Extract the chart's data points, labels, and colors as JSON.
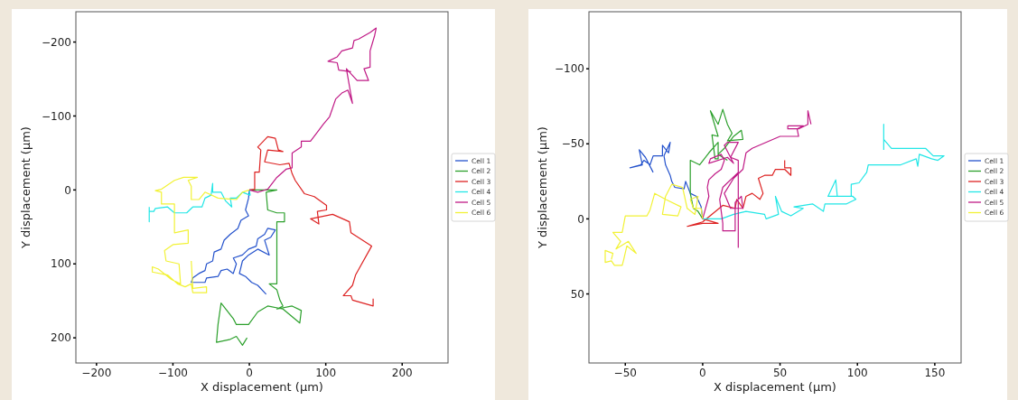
{
  "chart_data": [
    {
      "type": "line",
      "xlabel": "X displacement (µm)",
      "ylabel": "Y displacement (µm)",
      "xlim": [
        -227,
        260
      ],
      "ylim": [
        234,
        -241
      ],
      "xticks": [
        {
          "value": -200,
          "label": "−200"
        },
        {
          "value": -100,
          "label": "−100"
        },
        0,
        100,
        200
      ],
      "yticks": [
        {
          "value": -200,
          "label": "−200"
        },
        {
          "value": -100,
          "label": "−100"
        },
        0,
        100,
        200
      ],
      "legend": "right",
      "series": [
        {
          "name": "Cell 1",
          "color": "#2452cc",
          "x": [
            0,
            -1,
            -5,
            -1,
            -11,
            -15,
            -25,
            -33,
            -37,
            -46,
            -48,
            -56,
            -58,
            -66,
            -74,
            -76,
            -58,
            -56,
            -41,
            -37,
            -29,
            -21,
            -17,
            -21,
            -9,
            -1,
            9,
            11,
            20,
            24,
            34,
            28,
            20,
            26,
            11,
            -1,
            -9,
            -13,
            -5,
            3,
            11,
            22
          ],
          "values": [
            0,
            11,
            27,
            35,
            41,
            52,
            60,
            68,
            80,
            84,
            96,
            100,
            109,
            113,
            119,
            125,
            125,
            119,
            117,
            109,
            107,
            113,
            100,
            92,
            88,
            80,
            76,
            66,
            60,
            52,
            54,
            64,
            68,
            88,
            80,
            88,
            96,
            113,
            117,
            125,
            129,
            141
          ]
        },
        {
          "name": "Cell 2",
          "color": "#2ca02c",
          "x": [
            0,
            36,
            22,
            24,
            36,
            46,
            46,
            36,
            36,
            26,
            36,
            40,
            44,
            36,
            56,
            68,
            66,
            44,
            24,
            11,
            -1,
            -17,
            -21,
            -37,
            -41,
            -43,
            -25,
            -17,
            -9,
            -3
          ],
          "values": [
            0,
            0,
            3,
            27,
            31,
            31,
            43,
            43,
            127,
            127,
            135,
            149,
            157,
            161,
            157,
            163,
            180,
            161,
            157,
            165,
            182,
            182,
            174,
            153,
            182,
            206,
            202,
            198,
            210,
            200
          ]
        },
        {
          "name": "Cell 3",
          "color": "#dd2222",
          "x": [
            0,
            7,
            7,
            13,
            15,
            11,
            24,
            34,
            38,
            44,
            24,
            20,
            40,
            52,
            56,
            60,
            72,
            85,
            101,
            101,
            89,
            91,
            80,
            109,
            131,
            133,
            160,
            139,
            135,
            123,
            133,
            135,
            162,
            162
          ],
          "values": [
            0,
            -1,
            -24,
            -24,
            -54,
            -58,
            -72,
            -70,
            -54,
            -52,
            -54,
            -38,
            -34,
            -36,
            -22,
            -13,
            5,
            9,
            21,
            27,
            29,
            46,
            39,
            33,
            43,
            58,
            76,
            115,
            129,
            143,
            143,
            149,
            157,
            147
          ]
        },
        {
          "name": "Cell 4",
          "color": "#22e6e6",
          "x": [
            0,
            1,
            -9,
            -17,
            -25,
            -23,
            -31,
            -37,
            -48,
            -48,
            -50,
            -58,
            -62,
            -74,
            -82,
            -98,
            -107,
            -123,
            -125,
            -131,
            -131,
            -131
          ],
          "values": [
            0,
            7,
            3,
            11,
            11,
            23,
            15,
            3,
            3,
            -9,
            7,
            11,
            23,
            23,
            31,
            31,
            23,
            25,
            29,
            29,
            43,
            23
          ]
        },
        {
          "name": "Cell 5",
          "color": "#c01a86",
          "x": [
            0,
            11,
            24,
            36,
            48,
            56,
            56,
            68,
            68,
            80,
            89,
            97,
            105,
            109,
            113,
            121,
            129,
            135,
            129,
            127,
            141,
            156,
            150,
            158,
            158,
            164,
            166,
            158,
            143,
            137,
            135,
            121,
            115,
            103,
            115,
            117,
            133
          ],
          "values": [
            0,
            3,
            -1,
            -17,
            -28,
            -30,
            -50,
            -58,
            -66,
            -66,
            -78,
            -89,
            -99,
            -111,
            -123,
            -131,
            -135,
            -117,
            -152,
            -164,
            -148,
            -148,
            -164,
            -166,
            -188,
            -209,
            -219,
            -213,
            -204,
            -202,
            -192,
            -188,
            -180,
            -174,
            -172,
            -162,
            -160
          ]
        },
        {
          "name": "Cell 6",
          "color": "#f2f236",
          "x": [
            0,
            -9,
            -17,
            -41,
            -58,
            -66,
            -76,
            -76,
            -80,
            -68,
            -86,
            -98,
            -115,
            -123,
            -115,
            -115,
            -98,
            -98,
            -80,
            -80,
            -100,
            -111,
            -109,
            -92,
            -90,
            -102,
            -119,
            -127,
            -127,
            -107,
            -94,
            -84,
            -76,
            -74,
            -56,
            -56,
            -74,
            -76
          ],
          "values": [
            0,
            3,
            13,
            11,
            3,
            13,
            13,
            -5,
            -13,
            -17,
            -17,
            -13,
            -1,
            1,
            3,
            19,
            19,
            58,
            54,
            72,
            74,
            82,
            96,
            100,
            127,
            121,
            107,
            104,
            111,
            115,
            127,
            131,
            127,
            139,
            139,
            131,
            133,
            96
          ]
        }
      ]
    },
    {
      "type": "line",
      "xlabel": "X displacement (µm)",
      "ylabel": "Y displacement (µm)",
      "xlim": [
        -73.5,
        167
      ],
      "ylim": [
        96,
        -138
      ],
      "xticks": [
        {
          "value": -50,
          "label": "−50"
        },
        0,
        50,
        100,
        150
      ],
      "yticks": [
        {
          "value": -100,
          "label": "−100"
        },
        {
          "value": -50,
          "label": "−50"
        },
        0,
        50
      ],
      "legend": "right",
      "series": [
        {
          "name": "Cell 1",
          "color": "#2452cc",
          "x": [
            0,
            -1,
            -4,
            -8,
            -11,
            -12,
            -18,
            -20,
            -21,
            -24,
            -25,
            -21,
            -22,
            -26,
            -26,
            -32,
            -34,
            -38,
            -40,
            -47,
            -39,
            -41,
            -37,
            -32
          ],
          "values": [
            0,
            -8,
            -15,
            -17,
            -25,
            -20,
            -21,
            -25,
            -29,
            -36,
            -42,
            -51,
            -44,
            -49,
            -42,
            -42,
            -36,
            -39,
            -36,
            -34,
            -36,
            -46,
            -41,
            -31
          ]
        },
        {
          "name": "Cell 2",
          "color": "#2ca02c",
          "x": [
            0,
            -3,
            -6,
            -8,
            -8,
            -2,
            4,
            10,
            10,
            8,
            6,
            10,
            5,
            10,
            13,
            16,
            19,
            16,
            26,
            25,
            20,
            14,
            10,
            16
          ],
          "values": [
            0,
            -5,
            -7,
            -17,
            -39,
            -36,
            -44,
            -51,
            -40,
            -40,
            -56,
            -55,
            -72,
            -63,
            -73,
            -63,
            -57,
            -52,
            -53,
            -59,
            -55,
            -47,
            -43,
            -39
          ]
        },
        {
          "name": "Cell 3",
          "color": "#dd2222",
          "x": [
            0,
            10,
            0,
            -10,
            0,
            13,
            21,
            22,
            26,
            28,
            32,
            37,
            39,
            36,
            40,
            45,
            47,
            53,
            57,
            57,
            53,
            53
          ],
          "values": [
            0,
            3,
            3,
            5,
            2,
            -9,
            -7,
            -13,
            -7,
            -15,
            -17,
            -13,
            -17,
            -27,
            -29,
            -29,
            -33,
            -33,
            -29,
            -34,
            -34,
            -39
          ]
        },
        {
          "name": "Cell 4",
          "color": "#22e6e6",
          "x": [
            0,
            12,
            20,
            28,
            40,
            41,
            49,
            47,
            51,
            57,
            65,
            59,
            71,
            78,
            79,
            93,
            99,
            97,
            81,
            86,
            87,
            96,
            96,
            101,
            106,
            107,
            128,
            138,
            139,
            140,
            148,
            152,
            156,
            149,
            144,
            122,
            117,
            117,
            117
          ],
          "values": [
            0,
            0,
            -3,
            -5,
            -3,
            0,
            -3,
            -15,
            -5,
            -2,
            -7,
            -8,
            -10,
            -5,
            -10,
            -10,
            -13,
            -15,
            -15,
            -26,
            -15,
            -15,
            -23,
            -24,
            -31,
            -36,
            -36,
            -40,
            -35,
            -43,
            -40,
            -39,
            -42,
            -42,
            -47,
            -47,
            -53,
            -63,
            -46
          ]
        },
        {
          "name": "Cell 5",
          "color": "#c01a86",
          "x": [
            0,
            4,
            3,
            4,
            8,
            12,
            14,
            12,
            5,
            4,
            16,
            20,
            14,
            16,
            23,
            18,
            23,
            23,
            23,
            13,
            11,
            13,
            13,
            21,
            21,
            25,
            26,
            18,
            14,
            20,
            26,
            28,
            32,
            50,
            62,
            61,
            65,
            55,
            55,
            62,
            68,
            68,
            70
          ],
          "values": [
            0,
            -15,
            -21,
            -26,
            -30,
            -33,
            -39,
            -43,
            -40,
            -37,
            -41,
            -37,
            -49,
            -51,
            -51,
            -41,
            -39,
            19,
            -31,
            -21,
            -13,
            3,
            8,
            8,
            -11,
            -15,
            -7,
            -7,
            -17,
            -27,
            -33,
            -44,
            -47,
            -55,
            -55,
            -60,
            -62,
            -62,
            -60,
            -60,
            -63,
            -72,
            -63
          ]
        },
        {
          "name": "Cell 6",
          "color": "#f2f236",
          "x": [
            0,
            -1,
            -6,
            -8,
            -3,
            -5,
            -10,
            -13,
            -20,
            -24,
            -26,
            -16,
            -14,
            -24,
            -31,
            -34,
            -36,
            -50,
            -52,
            -58,
            -53,
            -56,
            -48,
            -43,
            -49,
            -51,
            -52,
            -57,
            -59,
            -63,
            -63,
            -58,
            -59
          ],
          "values": [
            0,
            -7,
            -7,
            -13,
            -15,
            -3,
            -7,
            -21,
            -23,
            -15,
            -3,
            -2,
            -8,
            -13,
            -17,
            -6,
            -2,
            -2,
            9,
            9,
            15,
            20,
            15,
            23,
            18,
            27,
            31,
            31,
            28,
            29,
            21,
            23,
            27
          ]
        }
      ]
    }
  ]
}
